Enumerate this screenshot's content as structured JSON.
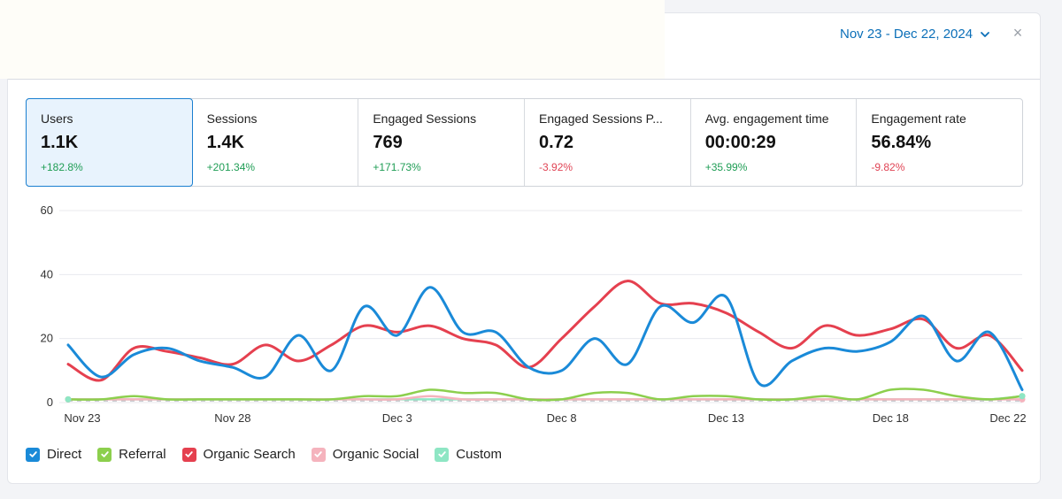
{
  "header": {
    "date_range": "Nov 23 - Dec 22, 2024",
    "close_symbol": "×"
  },
  "metrics": [
    {
      "label": "Users",
      "value": "1.1K",
      "change": "+182.8%",
      "trend": "pos",
      "active": true
    },
    {
      "label": "Sessions",
      "value": "1.4K",
      "change": "+201.34%",
      "trend": "pos",
      "active": false
    },
    {
      "label": "Engaged Sessions",
      "value": "769",
      "change": "+171.73%",
      "trend": "pos",
      "active": false
    },
    {
      "label": "Engaged Sessions P...",
      "value": "0.72",
      "change": "-3.92%",
      "trend": "neg",
      "active": false
    },
    {
      "label": "Avg. engagement time",
      "value": "00:00:29",
      "change": "+35.99%",
      "trend": "pos",
      "active": false
    },
    {
      "label": "Engagement rate",
      "value": "56.84%",
      "change": "-9.82%",
      "trend": "neg",
      "active": false
    }
  ],
  "legend": [
    {
      "label": "Direct",
      "color": "#1a8ad8",
      "checked": true
    },
    {
      "label": "Referral",
      "color": "#8ccf4d",
      "checked": true
    },
    {
      "label": "Organic Search",
      "color": "#e5404f",
      "checked": true
    },
    {
      "label": "Organic Social",
      "color": "#f5b3bd",
      "checked": true
    },
    {
      "label": "Custom",
      "color": "#8ee6c4",
      "checked": true
    }
  ],
  "chart_data": {
    "type": "line",
    "ylim": [
      0,
      60
    ],
    "yticks": [
      "0",
      "20",
      "40",
      "60"
    ],
    "x": [
      "Nov 23",
      "Nov 24",
      "Nov 25",
      "Nov 26",
      "Nov 27",
      "Nov 28",
      "Nov 29",
      "Nov 30",
      "Dec 1",
      "Dec 2",
      "Dec 3",
      "Dec 4",
      "Dec 5",
      "Dec 6",
      "Dec 7",
      "Dec 8",
      "Dec 9",
      "Dec 10",
      "Dec 11",
      "Dec 12",
      "Dec 13",
      "Dec 14",
      "Dec 15",
      "Dec 16",
      "Dec 17",
      "Dec 18",
      "Dec 19",
      "Dec 20",
      "Dec 21",
      "Dec 22"
    ],
    "xticks": [
      "Nov 23",
      "Nov 28",
      "Dec 3",
      "Dec 8",
      "Dec 13",
      "Dec 18",
      "Dec 22"
    ],
    "grid": true,
    "legend_position": "bottom-left",
    "series": [
      {
        "name": "Direct",
        "color": "#1a8ad8",
        "values": [
          18,
          8,
          15,
          17,
          13,
          11,
          8,
          21,
          10,
          30,
          21,
          36,
          22,
          22,
          11,
          10,
          20,
          12,
          30,
          25,
          33,
          6,
          13,
          17,
          16,
          19,
          27,
          13,
          22,
          4
        ]
      },
      {
        "name": "Referral",
        "color": "#8ccf4d",
        "values": [
          1,
          1,
          2,
          1,
          1,
          1,
          1,
          1,
          1,
          2,
          2,
          4,
          3,
          3,
          1,
          1,
          3,
          3,
          1,
          2,
          2,
          1,
          1,
          2,
          1,
          4,
          4,
          2,
          1,
          2
        ]
      },
      {
        "name": "Organic Search",
        "color": "#e5404f",
        "values": [
          12,
          7,
          17,
          16,
          14,
          12,
          18,
          13,
          18,
          24,
          22,
          24,
          20,
          18,
          11,
          20,
          30,
          38,
          31,
          31,
          28,
          22,
          17,
          24,
          21,
          23,
          26,
          17,
          21,
          10
        ]
      },
      {
        "name": "Organic Social",
        "color": "#f5b3bd",
        "values": [
          1,
          1,
          1,
          1,
          1,
          1,
          1,
          1,
          1,
          1,
          1,
          2,
          1,
          1,
          1,
          1,
          1,
          1,
          1,
          1,
          1,
          1,
          1,
          1,
          1,
          1,
          1,
          1,
          1,
          1
        ]
      },
      {
        "name": "Custom",
        "color": "#8ee6c4",
        "values": [
          1,
          1,
          1,
          1,
          1,
          1,
          1,
          1,
          1,
          1,
          1,
          1,
          1,
          1,
          1,
          1,
          1,
          1,
          1,
          1,
          1,
          1,
          1,
          1,
          1,
          1,
          1,
          1,
          1,
          2
        ]
      }
    ]
  }
}
